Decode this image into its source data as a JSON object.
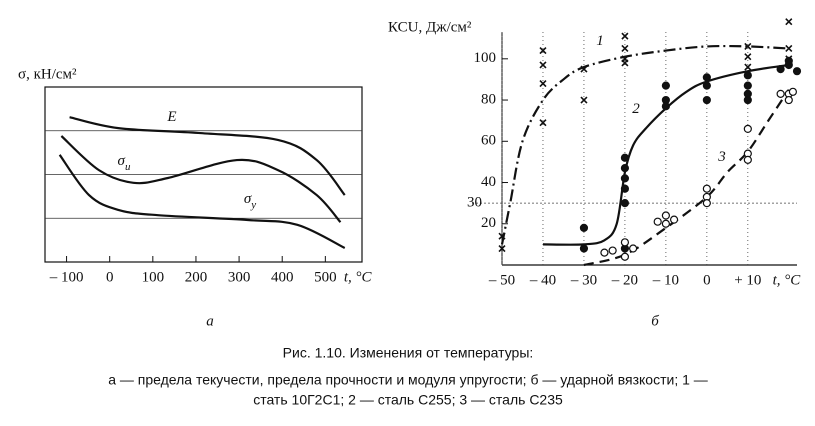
{
  "chart_data": [
    {
      "type": "line",
      "panel_label": "а",
      "ylabel": "σ, кН/см²",
      "xlabel": "t, °C",
      "xlim": [
        -150,
        585
      ],
      "xticks": [
        {
          "value": -100,
          "label": "– 100"
        },
        0,
        100,
        200,
        300,
        400,
        500
      ],
      "ylim": [
        0,
        4
      ],
      "ygrid": [
        1,
        2,
        3
      ],
      "series": [
        {
          "label": "E",
          "color": "#111111",
          "style": "solid",
          "x": [
            -93,
            20,
            205,
            390,
            480,
            545
          ],
          "values": [
            3.31,
            3.06,
            2.95,
            2.79,
            2.33,
            1.53
          ]
        },
        {
          "label": "σ",
          "label_sub": "и",
          "color": "#111111",
          "style": "solid",
          "x": [
            -112,
            -25,
            55,
            135,
            295,
            390,
            480,
            535
          ],
          "values": [
            2.88,
            2.1,
            1.81,
            1.92,
            2.33,
            2.1,
            1.53,
            0.91
          ]
        },
        {
          "label": "σ",
          "label_sub": "y",
          "color": "#111111",
          "style": "solid",
          "x": [
            -116,
            -48,
            20,
            112,
            320,
            435,
            545
          ],
          "values": [
            2.45,
            1.53,
            1.19,
            1.07,
            0.96,
            0.85,
            0.32
          ]
        }
      ]
    },
    {
      "type": "line",
      "panel_label": "б",
      "ylabel": "КСU, Дж/см²",
      "xlabel": "t, °C",
      "xlim": [
        -50,
        22
      ],
      "xticks": [
        {
          "value": -50,
          "label": "– 50"
        },
        {
          "value": -40,
          "label": "– 40"
        },
        {
          "value": -30,
          "label": "– 30"
        },
        {
          "value": -20,
          "label": "– 20"
        },
        {
          "value": -10,
          "label": "– 10"
        },
        0,
        {
          "value": 10,
          "label": "+ 10"
        }
      ],
      "ylim": [
        0,
        113
      ],
      "yticks": [
        20,
        40,
        60,
        80,
        100
      ],
      "ref_lines": [
        30
      ],
      "series": [
        {
          "label": "1",
          "color": "#111111",
          "style": "dashdot",
          "marker": "cross",
          "x": [
            -50,
            -48,
            -45,
            -40,
            -35,
            -30,
            -20,
            -10,
            0,
            10,
            20
          ],
          "values": [
            10,
            30,
            60,
            80,
            90,
            96,
            101,
            104,
            106,
            106,
            105
          ],
          "points_x": [
            -50,
            -50,
            -40,
            -40,
            -40,
            -40,
            -30,
            -30,
            -20,
            -20,
            -20,
            -20,
            10,
            10,
            10,
            20,
            20,
            20
          ],
          "points_y": [
            14,
            8,
            104,
            97,
            88,
            69,
            80,
            95,
            111,
            105,
            100,
            98,
            106,
            101,
            96,
            118,
            105,
            100
          ]
        },
        {
          "label": "2",
          "color": "#111111",
          "style": "solid",
          "marker": "dot",
          "x": [
            -40,
            -30,
            -25,
            -22,
            -20,
            -18,
            -15,
            -10,
            -5,
            0,
            10,
            20
          ],
          "values": [
            10,
            10,
            12,
            20,
            45,
            58,
            66,
            76,
            84,
            89,
            94,
            97
          ],
          "points_x": [
            -30,
            -30,
            -20,
            -20,
            -20,
            -20,
            -20,
            -20,
            -10,
            -10,
            -10,
            0,
            0,
            0,
            10,
            10,
            10,
            10,
            18,
            20,
            20,
            22
          ],
          "points_y": [
            18,
            8,
            52,
            47,
            42,
            37,
            30,
            8,
            87,
            80,
            77,
            91,
            87,
            80,
            92,
            87,
            83,
            80,
            95,
            99,
            97,
            94
          ]
        },
        {
          "label": "3",
          "color": "#111111",
          "style": "dashed",
          "marker": "circle",
          "x": [
            -30,
            -20,
            -10,
            0,
            5,
            10,
            15,
            20
          ],
          "values": [
            0,
            5,
            18,
            33,
            45,
            55,
            70,
            85
          ],
          "points_x": [
            -25,
            -23,
            -20,
            -20,
            -18,
            -12,
            -10,
            -10,
            -8,
            0,
            0,
            0,
            10,
            10,
            10,
            18,
            20,
            20,
            21
          ],
          "points_y": [
            6,
            7,
            11,
            4,
            8,
            21,
            24,
            20,
            22,
            37,
            33,
            30,
            66,
            54,
            51,
            83,
            83,
            80,
            84
          ]
        }
      ]
    }
  ],
  "caption": {
    "title": "Рис. 1.10. Изменения от температуры:",
    "lines": [
      "а — предела текучести, предела прочности и модуля упругости; б — ударной вязкости; 1 —",
      "стать 10Г2С1; 2 — сталь С255; 3 — сталь С235"
    ]
  }
}
